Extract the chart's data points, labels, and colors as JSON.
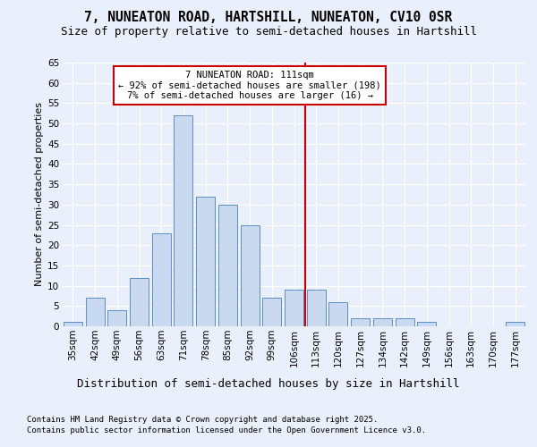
{
  "title1": "7, NUNEATON ROAD, HARTSHILL, NUNEATON, CV10 0SR",
  "title2": "Size of property relative to semi-detached houses in Hartshill",
  "xlabel": "Distribution of semi-detached houses by size in Hartshill",
  "ylabel": "Number of semi-detached properties",
  "categories": [
    "35sqm",
    "42sqm",
    "49sqm",
    "56sqm",
    "63sqm",
    "71sqm",
    "78sqm",
    "85sqm",
    "92sqm",
    "99sqm",
    "106sqm",
    "113sqm",
    "120sqm",
    "127sqm",
    "134sqm",
    "142sqm",
    "149sqm",
    "156sqm",
    "163sqm",
    "170sqm",
    "177sqm"
  ],
  "values": [
    1,
    7,
    4,
    12,
    23,
    52,
    32,
    30,
    25,
    7,
    9,
    9,
    6,
    2,
    2,
    2,
    1,
    0,
    0,
    0,
    1
  ],
  "bar_color": "#c9d9ef",
  "bar_edge_color": "#5b8ec4",
  "vline_x_index": 11,
  "vline_color": "#cc0000",
  "annotation_title": "7 NUNEATON ROAD: 111sqm",
  "annotation_line1": "← 92% of semi-detached houses are smaller (198)",
  "annotation_line2": "7% of semi-detached houses are larger (16) →",
  "annotation_box_color": "#cc0000",
  "annotation_bg": "#ffffff",
  "ylim": [
    0,
    65
  ],
  "yticks": [
    0,
    5,
    10,
    15,
    20,
    25,
    30,
    35,
    40,
    45,
    50,
    55,
    60,
    65
  ],
  "footnote1": "Contains HM Land Registry data © Crown copyright and database right 2025.",
  "footnote2": "Contains public sector information licensed under the Open Government Licence v3.0.",
  "bg_color": "#eaf0fb",
  "plot_bg_color": "#eaf0fb",
  "grid_color": "#ffffff",
  "title1_fontsize": 10.5,
  "title2_fontsize": 9,
  "xlabel_fontsize": 9,
  "ylabel_fontsize": 8,
  "tick_fontsize": 7.5,
  "annotation_fontsize": 7.5,
  "footnote_fontsize": 6.5
}
